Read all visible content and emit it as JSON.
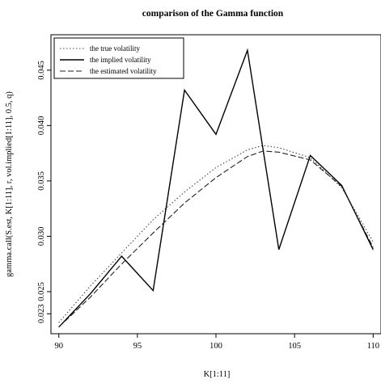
{
  "chart_data": {
    "type": "line",
    "title": "comparison of the Gamma function",
    "xlabel": "K[1:11]",
    "ylabel": "gamma.call(S.est, K[1:11], r, vol.implied[1:11], 0.5, q)",
    "xlim": [
      89.5,
      110.5
    ],
    "ylim": [
      0.0212,
      0.0482
    ],
    "x_ticks": [
      90,
      95,
      100,
      105,
      110
    ],
    "y_ticks": [
      0.023,
      0.025,
      0.03,
      0.035,
      0.04,
      0.045
    ],
    "x_tick_labels": [
      "90",
      "95",
      "100",
      "105",
      "110"
    ],
    "y_tick_labels": [
      "0.023",
      "0.025",
      "0.030",
      "0.035",
      "0.040",
      "0.045"
    ],
    "grid": false,
    "legend_position": "top-left",
    "series": [
      {
        "name": "the true volatility",
        "style": "dotted",
        "color": "#444444",
        "x": [
          90,
          92,
          94,
          96,
          98,
          100,
          102,
          103,
          104,
          106,
          108,
          110
        ],
        "y": [
          0.0222,
          0.0255,
          0.0285,
          0.0315,
          0.034,
          0.0362,
          0.0378,
          0.0382,
          0.038,
          0.0371,
          0.0344,
          0.0295
        ]
      },
      {
        "name": "the implied volatility",
        "style": "solid",
        "color": "#000000",
        "x": [
          90,
          92,
          94,
          96,
          98,
          100,
          102,
          104,
          106,
          108,
          110
        ],
        "y": [
          0.0218,
          0.0248,
          0.0282,
          0.0251,
          0.0432,
          0.0392,
          0.0468,
          0.0288,
          0.0373,
          0.0346,
          0.0288
        ]
      },
      {
        "name": "the estimated volatility",
        "style": "dashed",
        "color": "#222222",
        "x": [
          90,
          92,
          94,
          96,
          98,
          100,
          102,
          103,
          104,
          106,
          108,
          110
        ],
        "y": [
          0.0218,
          0.0245,
          0.0275,
          0.0303,
          0.033,
          0.0353,
          0.0372,
          0.0377,
          0.0376,
          0.0369,
          0.0345,
          0.029
        ]
      }
    ]
  }
}
